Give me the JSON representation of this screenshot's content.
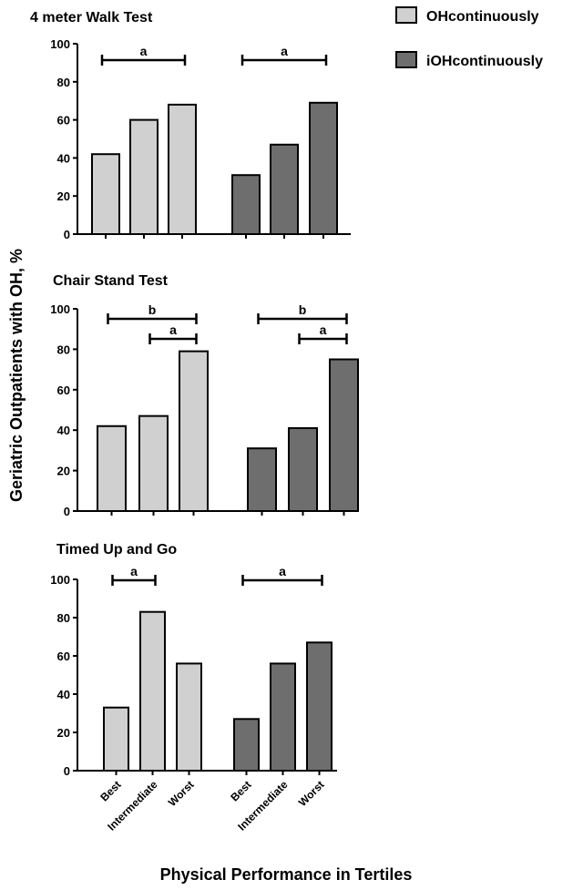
{
  "legend": {
    "items": [
      {
        "label": "OHcontinuously",
        "color": "#d0d0d0"
      },
      {
        "label": "iOHcontinuously",
        "color": "#6e6e6e"
      }
    ]
  },
  "ylabel": "Geriatric Outpatients with OH, %",
  "xlabel": "Physical Performance in Tertiles",
  "chart_data": [
    {
      "type": "bar",
      "title": "4 meter Walk Test",
      "categories": [
        "Best",
        "Intermediate",
        "Worst"
      ],
      "series": [
        {
          "name": "OHcontinuously",
          "values": [
            42,
            60,
            68
          ]
        },
        {
          "name": "iOHcontinuously",
          "values": [
            31,
            47,
            69
          ]
        }
      ],
      "ylim": [
        0,
        100
      ],
      "yticks": [
        "0",
        "20",
        "40",
        "60",
        "80",
        "100"
      ],
      "significance": [
        {
          "series": 0,
          "from": 0,
          "to": 2,
          "label": "a",
          "level": 0
        },
        {
          "series": 1,
          "from": 0,
          "to": 2,
          "label": "a",
          "level": 0
        }
      ]
    },
    {
      "type": "bar",
      "title": "Chair Stand Test",
      "categories": [
        "Best",
        "Intermediate",
        "Worst"
      ],
      "series": [
        {
          "name": "OHcontinuously",
          "values": [
            42,
            47,
            79
          ]
        },
        {
          "name": "iOHcontinuously",
          "values": [
            31,
            41,
            75
          ]
        }
      ],
      "ylim": [
        0,
        100
      ],
      "yticks": [
        "0",
        "20",
        "40",
        "60",
        "80",
        "100"
      ],
      "significance": [
        {
          "series": 0,
          "from": 0,
          "to": 2,
          "label": "b",
          "level": 0
        },
        {
          "series": 0,
          "from": 1,
          "to": 2,
          "label": "a",
          "level": 1
        },
        {
          "series": 1,
          "from": 0,
          "to": 2,
          "label": "b",
          "level": 0
        },
        {
          "series": 1,
          "from": 1,
          "to": 2,
          "label": "a",
          "level": 1
        }
      ]
    },
    {
      "type": "bar",
      "title": "Timed Up and Go",
      "categories": [
        "Best",
        "Intermediate",
        "Worst"
      ],
      "series": [
        {
          "name": "OHcontinuously",
          "values": [
            33,
            83,
            56
          ]
        },
        {
          "name": "iOHcontinuously",
          "values": [
            27,
            56,
            67
          ]
        }
      ],
      "ylim": [
        0,
        100
      ],
      "yticks": [
        "0",
        "20",
        "40",
        "60",
        "80",
        "100"
      ],
      "significance": [
        {
          "series": 0,
          "from": 0,
          "to": 1,
          "label": "a",
          "level": 0
        },
        {
          "series": 1,
          "from": 0,
          "to": 2,
          "label": "a",
          "level": 0
        }
      ]
    }
  ]
}
